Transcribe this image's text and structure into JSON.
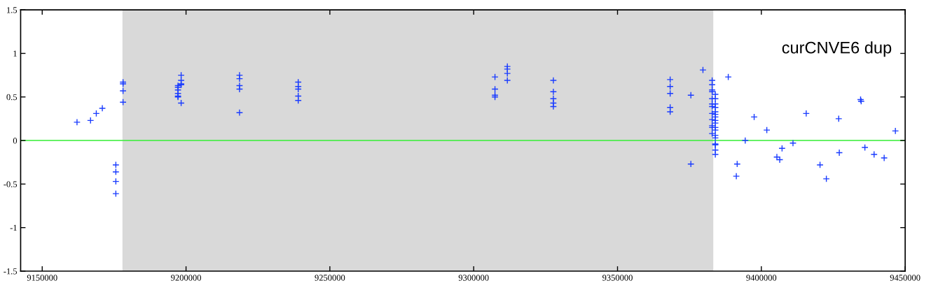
{
  "chart_data": {
    "type": "scatter",
    "marker": "cross",
    "grid": false,
    "legend": false,
    "xlim": [
      9142500,
      9450000
    ],
    "xticks": [
      9150000,
      9200000,
      9250000,
      9300000,
      9350000,
      9400000,
      9450000
    ],
    "ylim": [
      -1.5,
      1.5
    ],
    "yticks": [
      -1.5,
      -1,
      -0.5,
      0,
      0.5,
      1,
      1.5
    ],
    "annotations": [
      "curCNVE6 dup"
    ],
    "bands": [
      {
        "axis": "x",
        "from": 9177900,
        "to": 9383300,
        "color": "#d9d9d9"
      }
    ],
    "ref_lines": [
      {
        "axis": "y",
        "value": 0,
        "color": "#33ee33"
      }
    ],
    "series": [
      {
        "color": "#1a3cff",
        "x": [
          9162100,
          9166800,
          9168800,
          9170900,
          9175600,
          9175600,
          9175600,
          9175600,
          9178100,
          9178100,
          9178100,
          9178100,
          9198300,
          9198300,
          9198300,
          9198300,
          9198300,
          9197200,
          9197200,
          9197200,
          9197200,
          9197200,
          9197200,
          9218600,
          9218600,
          9218600,
          9218600,
          9218600,
          9239000,
          9239000,
          9239000,
          9239000,
          9239000,
          9307400,
          9307400,
          9307400,
          9307400,
          9311700,
          9311700,
          9311700,
          9311700,
          9327700,
          9327700,
          9327700,
          9327700,
          9327700,
          9368300,
          9368300,
          9368300,
          9368300,
          9368300,
          9375500,
          9379700,
          9388500,
          9382900,
          9382900,
          9382900,
          9382900,
          9382900,
          9382900,
          9382900,
          9382900,
          9382900,
          9382900,
          9382900,
          9382900,
          9384000,
          9384000,
          9384000,
          9384000,
          9384000,
          9384000,
          9384000,
          9384000,
          9384000,
          9384000,
          9384000,
          9384000,
          9384000,
          9384000,
          9384000,
          9384000,
          9384000,
          9375500,
          9391600,
          9391300,
          9394400,
          9397500,
          9401900,
          9407200,
          9405400,
          9406400,
          9411000,
          9415600,
          9420400,
          9422600,
          9426900,
          9427100,
          9434500,
          9434700,
          9436000,
          9439200,
          9442700,
          9446600
        ],
        "values": [
          0.21,
          0.23,
          0.31,
          0.37,
          -0.28,
          -0.36,
          -0.47,
          -0.61,
          0.67,
          0.65,
          0.57,
          0.44,
          0.75,
          0.69,
          0.65,
          0.64,
          0.43,
          0.63,
          0.61,
          0.58,
          0.54,
          0.51,
          0.5,
          0.75,
          0.71,
          0.63,
          0.59,
          0.32,
          0.67,
          0.62,
          0.59,
          0.51,
          0.46,
          0.73,
          0.59,
          0.52,
          0.5,
          0.85,
          0.82,
          0.77,
          0.69,
          0.69,
          0.56,
          0.48,
          0.43,
          0.39,
          0.7,
          0.62,
          0.54,
          0.38,
          0.33,
          0.52,
          0.81,
          0.73,
          0.69,
          0.64,
          0.58,
          0.56,
          0.48,
          0.42,
          0.39,
          0.31,
          0.24,
          0.17,
          0.15,
          0.08,
          0.53,
          0.48,
          0.42,
          0.38,
          0.33,
          0.3,
          0.27,
          0.23,
          0.2,
          0.15,
          0.12,
          0.06,
          0.03,
          -0.04,
          -0.05,
          -0.11,
          -0.16,
          -0.27,
          -0.27,
          -0.41,
          0.0,
          0.27,
          0.12,
          -0.09,
          -0.19,
          -0.22,
          -0.03,
          0.31,
          -0.28,
          -0.44,
          0.25,
          -0.14,
          0.47,
          0.45,
          -0.08,
          -0.16,
          -0.2,
          0.11
        ]
      }
    ]
  }
}
